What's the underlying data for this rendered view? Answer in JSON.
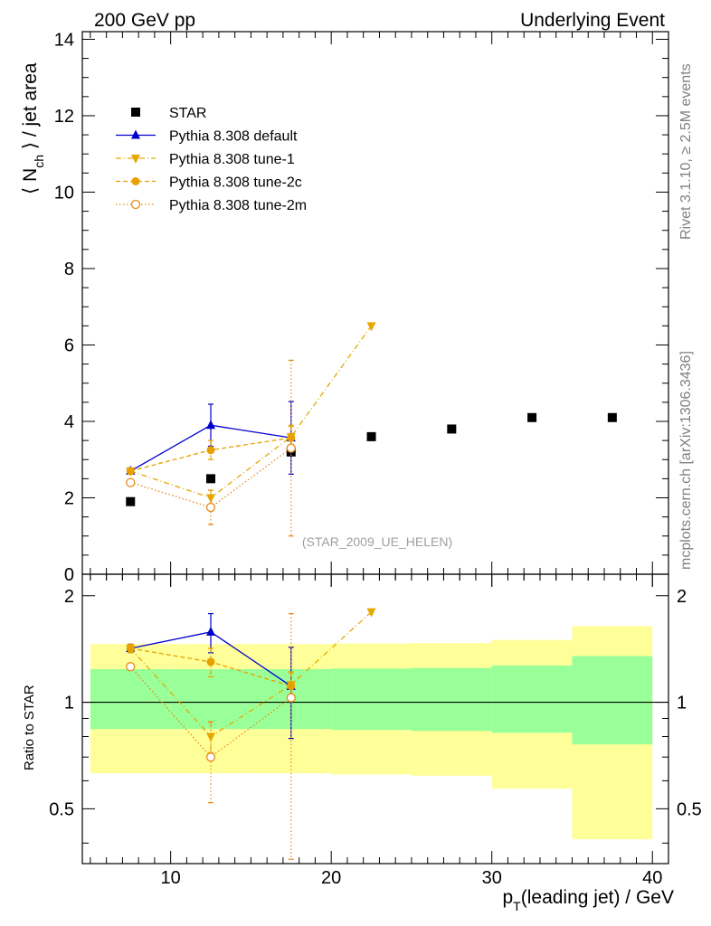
{
  "header": {
    "left": "200 GeV pp",
    "right": "Underlying Event"
  },
  "side_labels": {
    "rivet": "Rivet 3.1.10, ≥ 2.5M events",
    "mcplots": "mcplots.cern.ch [arXiv:1306.3436]"
  },
  "analysis_label": "(STAR_2009_UE_HELEN)",
  "colors": {
    "star": "#000000",
    "default": "#0000cc",
    "tune1": "#e6a800",
    "tune2c": "#e6a000",
    "tune2m": "#e68a1a",
    "band_inner": "#99ff99",
    "band_outer": "#ffff99"
  },
  "chart_data": [
    {
      "type": "scatter",
      "panel": "main",
      "ylabel_main": "⟨ N",
      "ylabel_sub": "ch",
      "ylabel_rest": " ⟩ / jet area",
      "xlim": [
        4.5,
        41
      ],
      "ylim": [
        0,
        14.2
      ],
      "yticks": [
        "0",
        "2",
        "4",
        "6",
        "8",
        "10",
        "12",
        "14"
      ],
      "legend_position": "top-left",
      "series": [
        {
          "name": "STAR",
          "marker": "square",
          "x": [
            7.5,
            12.5,
            17.5,
            22.5,
            27.5,
            32.5,
            37.5
          ],
          "y": [
            1.9,
            2.5,
            3.2,
            3.6,
            3.8,
            4.1,
            4.1
          ]
        },
        {
          "name": "Pythia 8.308 default",
          "marker": "triangle-up",
          "line": "solid",
          "x": [
            7.5,
            12.5,
            17.5
          ],
          "y": [
            2.7,
            3.9,
            3.57
          ],
          "err": [
            0.08,
            0.55,
            0.95
          ]
        },
        {
          "name": "Pythia 8.308 tune-1",
          "marker": "triangle-down",
          "line": "dashdot",
          "x": [
            7.5,
            12.5,
            17.5,
            22.5
          ],
          "y": [
            2.7,
            2.0,
            3.6,
            6.5
          ],
          "err": [
            0.08,
            0.2,
            0.3,
            0.0
          ]
        },
        {
          "name": "Pythia 8.308 tune-2c",
          "marker": "circle",
          "line": "dashed",
          "x": [
            7.5,
            12.5,
            17.5
          ],
          "y": [
            2.7,
            3.25,
            3.57
          ],
          "err": [
            0.06,
            0.25,
            0.3
          ]
        },
        {
          "name": "Pythia 8.308 tune-2m",
          "marker": "circle-open",
          "line": "dotted",
          "x": [
            7.5,
            12.5,
            17.5
          ],
          "y": [
            2.4,
            1.75,
            3.3
          ],
          "err": [
            0.05,
            0.45,
            2.3
          ]
        }
      ]
    },
    {
      "type": "scatter",
      "panel": "ratio",
      "ylabel": "Ratio to STAR",
      "xlabel_main": "p",
      "xlabel_sub": "T",
      "xlabel_rest": "(leading jet) / GeV",
      "xlim": [
        4.5,
        41
      ],
      "ylim": [
        0.35,
        2.3
      ],
      "yticks": [
        "0.5",
        "1",
        "2"
      ],
      "xticks": [
        "10",
        "20",
        "30",
        "40"
      ],
      "bands": [
        {
          "x0": 5,
          "x1": 10,
          "inner": [
            0.84,
            1.24
          ],
          "outer": [
            0.63,
            1.46
          ]
        },
        {
          "x0": 10,
          "x1": 15,
          "inner": [
            0.84,
            1.24
          ],
          "outer": [
            0.63,
            1.46
          ]
        },
        {
          "x0": 15,
          "x1": 20,
          "inner": [
            0.84,
            1.24
          ],
          "outer": [
            0.63,
            1.46
          ]
        },
        {
          "x0": 20,
          "x1": 25,
          "inner": [
            0.835,
            1.245
          ],
          "outer": [
            0.625,
            1.465
          ]
        },
        {
          "x0": 25,
          "x1": 30,
          "inner": [
            0.83,
            1.25
          ],
          "outer": [
            0.62,
            1.47
          ]
        },
        {
          "x0": 30,
          "x1": 35,
          "inner": [
            0.82,
            1.27
          ],
          "outer": [
            0.57,
            1.5
          ]
        },
        {
          "x0": 35,
          "x1": 40,
          "inner": [
            0.76,
            1.35
          ],
          "outer": [
            0.41,
            1.64
          ]
        }
      ],
      "series": [
        {
          "name": "Pythia 8.308 default",
          "marker": "triangle-up",
          "line": "solid",
          "x": [
            7.5,
            12.5,
            17.5
          ],
          "y": [
            1.42,
            1.58,
            1.11
          ],
          "err": [
            0.04,
            0.2,
            0.32
          ]
        },
        {
          "name": "Pythia 8.308 tune-1",
          "marker": "triangle-down",
          "line": "dashdot",
          "x": [
            7.5,
            12.5,
            17.5,
            22.5
          ],
          "y": [
            1.42,
            0.8,
            1.12,
            1.8
          ],
          "err": [
            0.04,
            0.08,
            0.1,
            0.0
          ]
        },
        {
          "name": "Pythia 8.308 tune-2c",
          "marker": "circle",
          "line": "dashed",
          "x": [
            7.5,
            12.5,
            17.5
          ],
          "y": [
            1.42,
            1.3,
            1.11
          ],
          "err": [
            0.03,
            0.12,
            0.1
          ]
        },
        {
          "name": "Pythia 8.308 tune-2m",
          "marker": "circle-open",
          "line": "dotted",
          "x": [
            7.5,
            12.5,
            17.5
          ],
          "y": [
            1.26,
            0.7,
            1.03
          ],
          "err": [
            0.03,
            0.18,
            0.75
          ]
        }
      ]
    }
  ]
}
